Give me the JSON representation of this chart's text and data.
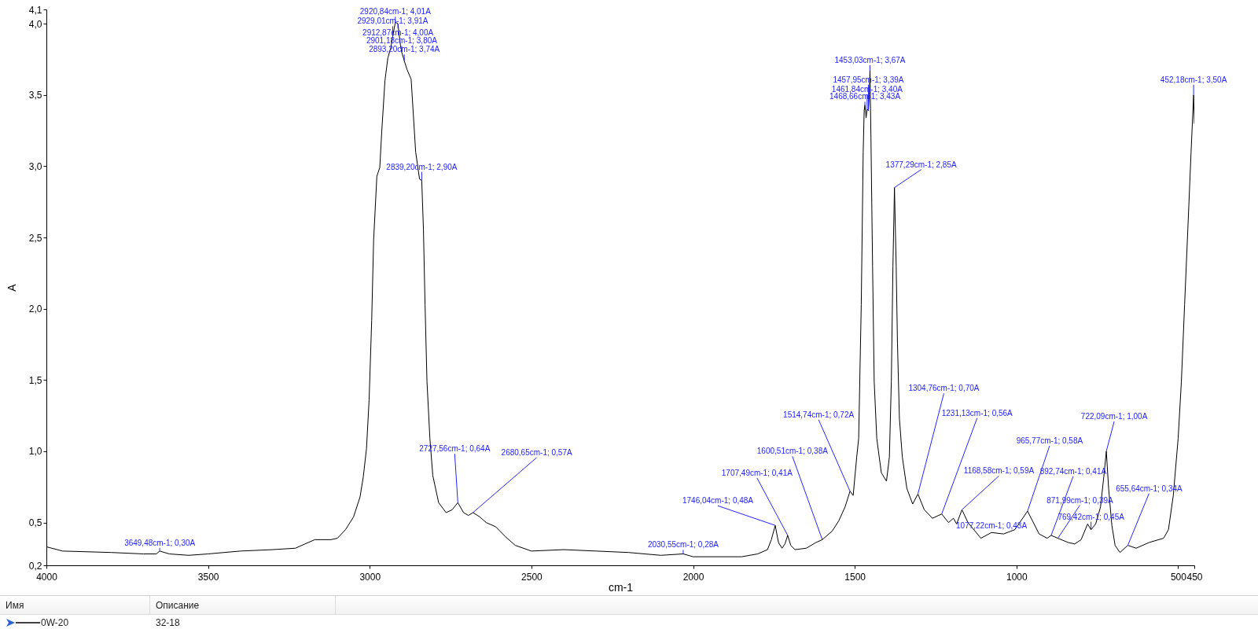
{
  "chart_data": {
    "type": "line",
    "xlabel": "cm-1",
    "ylabel": "A",
    "legend_title": "Имя",
    "legend": "bottom",
    "xlim": [
      4000,
      450
    ],
    "ylim": [
      0.2,
      4.1
    ],
    "xticks": [
      4000,
      3500,
      3000,
      2500,
      2000,
      1500,
      1000,
      500,
      450
    ],
    "yticks": [
      {
        "value": 0.2,
        "label": "0,2"
      },
      {
        "value": 0.5,
        "label": "0,5"
      },
      {
        "value": 1.0,
        "label": "1,0"
      },
      {
        "value": 1.5,
        "label": "1,5"
      },
      {
        "value": 2.0,
        "label": "2,0"
      },
      {
        "value": 2.5,
        "label": "2,5"
      },
      {
        "value": 3.0,
        "label": "3,0"
      },
      {
        "value": 3.5,
        "label": "3,5"
      },
      {
        "value": 4.0,
        "label": "4,0"
      },
      {
        "value": 4.1,
        "label": "4,1"
      }
    ],
    "x": [
      4000,
      3950,
      3800,
      3700,
      3660,
      3649.48,
      3620,
      3560,
      3500,
      3400,
      3300,
      3230,
      3200,
      3170,
      3120,
      3100,
      3075,
      3050,
      3030,
      3020,
      3010,
      3002,
      2994,
      2988,
      2978,
      2969,
      2963,
      2953,
      2944,
      2935,
      2929.01,
      2920.84,
      2912.87,
      2905,
      2901.18,
      2893.2,
      2885,
      2872,
      2858,
      2846,
      2839.2,
      2834,
      2829,
      2823,
      2814,
      2805,
      2787,
      2764,
      2745,
      2727.56,
      2710,
      2695,
      2680.65,
      2660,
      2640,
      2610,
      2580,
      2550,
      2500,
      2400,
      2300,
      2200,
      2100,
      2030.55,
      2000,
      1850,
      1800,
      1770,
      1758,
      1746.04,
      1736,
      1725,
      1716,
      1707.49,
      1698,
      1685,
      1650,
      1620,
      1600.51,
      1570,
      1550,
      1530,
      1514.74,
      1505,
      1494,
      1488,
      1480,
      1474,
      1471,
      1468.66,
      1465,
      1461.84,
      1457.95,
      1455,
      1453.03,
      1450,
      1445,
      1440,
      1432,
      1418,
      1402,
      1393,
      1387,
      1382,
      1377.29,
      1372,
      1368,
      1362,
      1353,
      1339,
      1321,
      1304.76,
      1285,
      1260,
      1231.13,
      1210,
      1195,
      1185,
      1168.58,
      1150,
      1110,
      1077.22,
      1040,
      1005,
      990,
      965.77,
      950,
      930,
      905,
      892.74,
      871.99,
      840,
      820,
      800,
      780,
      769.42,
      755,
      740,
      730,
      722.09,
      715,
      705,
      695,
      680,
      655.64,
      630,
      590,
      545,
      530,
      515,
      500,
      490,
      480,
      470,
      460,
      452.18,
      450
    ],
    "series": [
      {
        "name": "0W-20",
        "color": "#000000",
        "values": [
          0.33,
          0.3,
          0.29,
          0.28,
          0.28,
          0.3,
          0.28,
          0.27,
          0.28,
          0.3,
          0.31,
          0.32,
          0.35,
          0.38,
          0.38,
          0.39,
          0.45,
          0.54,
          0.68,
          0.82,
          1.02,
          1.36,
          1.92,
          2.48,
          2.93,
          2.99,
          3.24,
          3.6,
          3.76,
          3.83,
          3.91,
          4.01,
          4.0,
          3.85,
          3.8,
          3.74,
          3.68,
          3.61,
          3.1,
          2.91,
          2.9,
          2.56,
          2.03,
          1.49,
          1.09,
          0.83,
          0.64,
          0.57,
          0.59,
          0.64,
          0.57,
          0.55,
          0.57,
          0.54,
          0.5,
          0.47,
          0.4,
          0.34,
          0.3,
          0.31,
          0.3,
          0.29,
          0.27,
          0.28,
          0.26,
          0.26,
          0.28,
          0.31,
          0.38,
          0.48,
          0.36,
          0.32,
          0.35,
          0.41,
          0.34,
          0.31,
          0.32,
          0.36,
          0.38,
          0.44,
          0.51,
          0.61,
          0.72,
          0.69,
          0.96,
          1.09,
          2.03,
          3.1,
          3.39,
          3.43,
          3.34,
          3.4,
          3.39,
          3.5,
          3.67,
          3.2,
          2.3,
          1.49,
          1.09,
          0.85,
          0.79,
          0.96,
          1.49,
          2.3,
          2.85,
          2.3,
          1.76,
          1.23,
          0.96,
          0.74,
          0.63,
          0.7,
          0.59,
          0.53,
          0.56,
          0.5,
          0.53,
          0.49,
          0.59,
          0.5,
          0.39,
          0.43,
          0.42,
          0.45,
          0.5,
          0.58,
          0.51,
          0.42,
          0.39,
          0.41,
          0.39,
          0.36,
          0.35,
          0.38,
          0.49,
          0.45,
          0.49,
          0.61,
          0.82,
          1.0,
          0.74,
          0.48,
          0.34,
          0.29,
          0.34,
          0.32,
          0.36,
          0.39,
          0.45,
          0.69,
          1.09,
          1.49,
          2.03,
          2.56,
          3.1,
          3.5,
          3.3
        ]
      }
    ],
    "annotations": [
      {
        "text": "2920,84cm-1; 4,01A",
        "x": 2920.84,
        "y": 4.01
      },
      {
        "text": "2929,01cm-1; 3,91A",
        "x": 2929.01,
        "y": 3.91
      },
      {
        "text": "2912,87cm-1; 4,00A",
        "x": 2912.87,
        "y": 4.0
      },
      {
        "text": "2901,18cm-1; 3,80A",
        "x": 2901.18,
        "y": 3.8
      },
      {
        "text": "2893,20cm-1; 3,74A",
        "x": 2893.2,
        "y": 3.74
      },
      {
        "text": "2839,20cm-1; 2,90A",
        "x": 2839.2,
        "y": 2.9
      },
      {
        "text": "2727,56cm-1; 0,64A",
        "x": 2727.56,
        "y": 0.64
      },
      {
        "text": "2680,65cm-1; 0,57A",
        "x": 2680.65,
        "y": 0.57
      },
      {
        "text": "3649,48cm-1; 0,30A",
        "x": 3649.48,
        "y": 0.3
      },
      {
        "text": "2030,55cm-1; 0,28A",
        "x": 2030.55,
        "y": 0.28
      },
      {
        "text": "1746,04cm-1; 0,48A",
        "x": 1746.04,
        "y": 0.48
      },
      {
        "text": "1707,49cm-1; 0,41A",
        "x": 1707.49,
        "y": 0.41
      },
      {
        "text": "1600,51cm-1; 0,38A",
        "x": 1600.51,
        "y": 0.38
      },
      {
        "text": "1514,74cm-1; 0,72A",
        "x": 1514.74,
        "y": 0.72
      },
      {
        "text": "1453,03cm-1; 3,67A",
        "x": 1453.03,
        "y": 3.67
      },
      {
        "text": "1457,95cm-1; 3,39A",
        "x": 1457.95,
        "y": 3.39
      },
      {
        "text": "1461,84cm-1; 3,40A",
        "x": 1461.84,
        "y": 3.4
      },
      {
        "text": "1468,66cm-1; 3,43A",
        "x": 1468.66,
        "y": 3.43
      },
      {
        "text": "1377,29cm-1; 2,85A",
        "x": 1377.29,
        "y": 2.85
      },
      {
        "text": "1304,76cm-1; 0,70A",
        "x": 1304.76,
        "y": 0.7
      },
      {
        "text": "1231,13cm-1; 0,56A",
        "x": 1231.13,
        "y": 0.56
      },
      {
        "text": "1168,58cm-1; 0,59A",
        "x": 1168.58,
        "y": 0.59
      },
      {
        "text": "1077,22cm-1; 0,43A",
        "x": 1077.22,
        "y": 0.43
      },
      {
        "text": "965,77cm-1; 0,58A",
        "x": 965.77,
        "y": 0.58
      },
      {
        "text": "892,74cm-1; 0,41A",
        "x": 892.74,
        "y": 0.41
      },
      {
        "text": "871,99cm-1; 0,39A",
        "x": 871.99,
        "y": 0.39
      },
      {
        "text": "769,42cm-1; 0,45A",
        "x": 769.42,
        "y": 0.45
      },
      {
        "text": "722,09cm-1; 1,00A",
        "x": 722.09,
        "y": 1.0
      },
      {
        "text": "655,64cm-1; 0,34A",
        "x": 655.64,
        "y": 0.34
      },
      {
        "text": "452,18cm-1; 3,50A",
        "x": 452.18,
        "y": 3.5
      },
      "Описание",
      "32-18"
    ]
  }
}
